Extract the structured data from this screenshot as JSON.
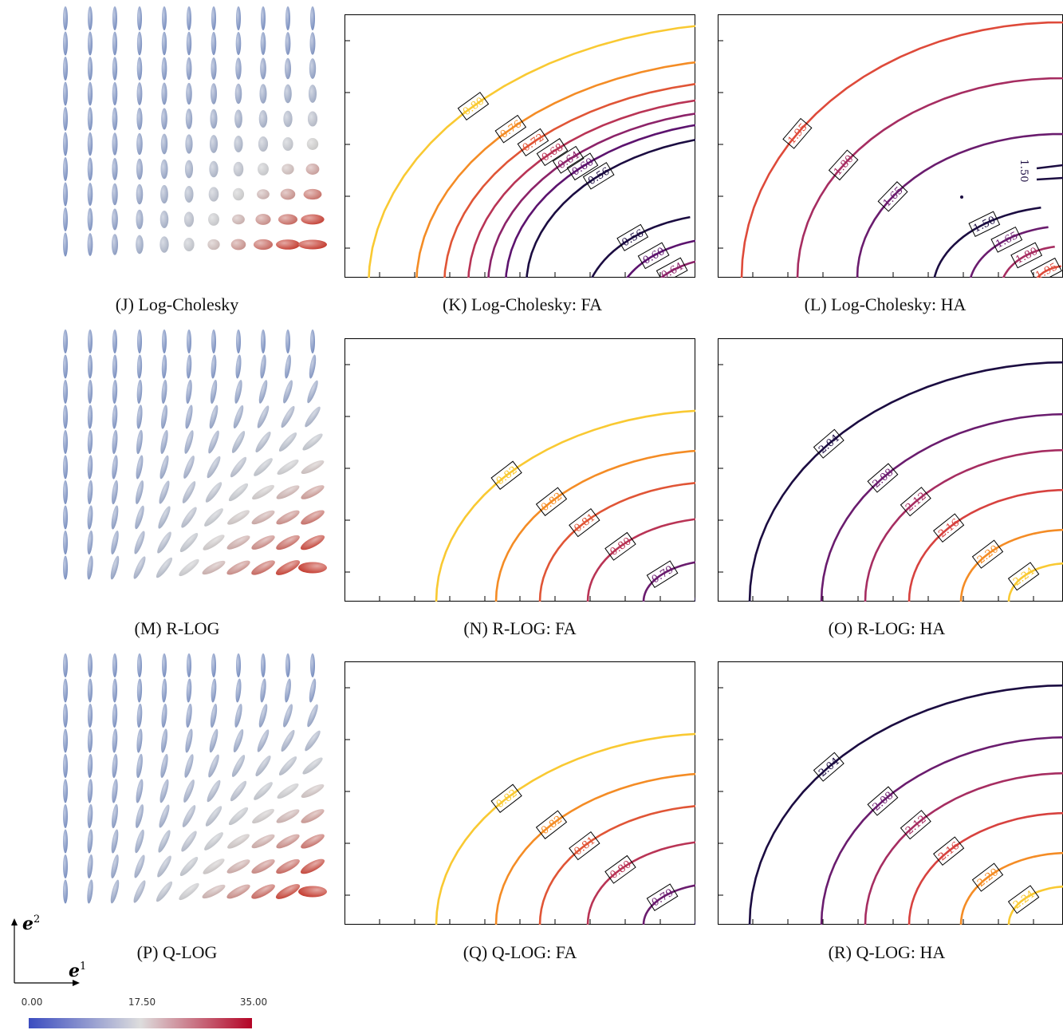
{
  "rows": [
    {
      "glyph_caption": "(J) Log-Cholesky",
      "fa_caption": "(K) Log-Cholesky: FA",
      "ha_caption": "(L) Log-Cholesky: HA",
      "glyph_style": "logchol"
    },
    {
      "glyph_caption": "(M) R-LOG",
      "fa_caption": "(N) R-LOG: FA",
      "ha_caption": "(O) R-LOG: HA",
      "glyph_style": "tilted"
    },
    {
      "glyph_caption": "(P) Q-LOG",
      "fa_caption": "(Q) Q-LOG: FA",
      "ha_caption": "(R) Q-LOG: HA",
      "glyph_style": "tilted"
    }
  ],
  "chart_data": [
    {
      "type": "contour",
      "panel": "K",
      "levels": [
        0.8,
        0.76,
        0.72,
        0.68,
        0.64,
        0.6,
        0.56
      ],
      "level_labels": [
        "0.80",
        "0.76",
        "0.72",
        "0.68",
        "0.64",
        "0.60",
        "0.56"
      ],
      "colors": [
        "#f9c932",
        "#f48c25",
        "#e05536",
        "#b93455",
        "#8c2369",
        "#5c136e",
        "#1b0c41"
      ],
      "lower_right_labels": [
        "0.56",
        "0.60",
        "0.64"
      ]
    },
    {
      "type": "contour",
      "panel": "L",
      "level_labels": [
        "1.95",
        "1.80",
        "1.65",
        "1.50"
      ],
      "colors": [
        "#de4a3a",
        "#a62d61",
        "#6a1c6e",
        "#1b0c41"
      ],
      "lower_right_labels": [
        "1.50",
        "1.65",
        "1.80",
        "1.95"
      ],
      "upper_right_label": "1.50"
    },
    {
      "type": "contour",
      "panel": "N",
      "level_labels": [
        "0.82",
        "0.82",
        "0.81",
        "0.80",
        "0.79"
      ],
      "colors": [
        "#f9c932",
        "#f48c25",
        "#e05536",
        "#b93455",
        "#6a1c6e",
        "#1b0c41"
      ]
    },
    {
      "type": "contour",
      "panel": "O",
      "level_labels": [
        "2.04",
        "2.08",
        "2.12",
        "2.16",
        "2.20",
        "2.24"
      ],
      "colors": [
        "#1b0c41",
        "#6a1c6e",
        "#a62d61",
        "#d7423f",
        "#f48c25",
        "#f9c932"
      ]
    },
    {
      "type": "contour",
      "panel": "Q",
      "level_labels": [
        "0.82",
        "0.82",
        "0.81",
        "0.80",
        "0.79"
      ],
      "colors": [
        "#f9c932",
        "#f48c25",
        "#e05536",
        "#b93455",
        "#6a1c6e",
        "#1b0c41"
      ]
    },
    {
      "type": "contour",
      "panel": "R",
      "level_labels": [
        "2.04",
        "2.08",
        "2.12",
        "2.16",
        "2.20",
        "2.24"
      ],
      "colors": [
        "#1b0c41",
        "#6a1c6e",
        "#a62d61",
        "#d7423f",
        "#f48c25",
        "#f9c932"
      ]
    }
  ],
  "colorbar": {
    "ticks": [
      "0.00",
      "17.50",
      "35.00"
    ],
    "colors": [
      "#3b4cc0",
      "#dddddd",
      "#b40426"
    ]
  },
  "axes": {
    "e1": "e",
    "e1_sup": "1",
    "e2": "e",
    "e2_sup": "2"
  }
}
